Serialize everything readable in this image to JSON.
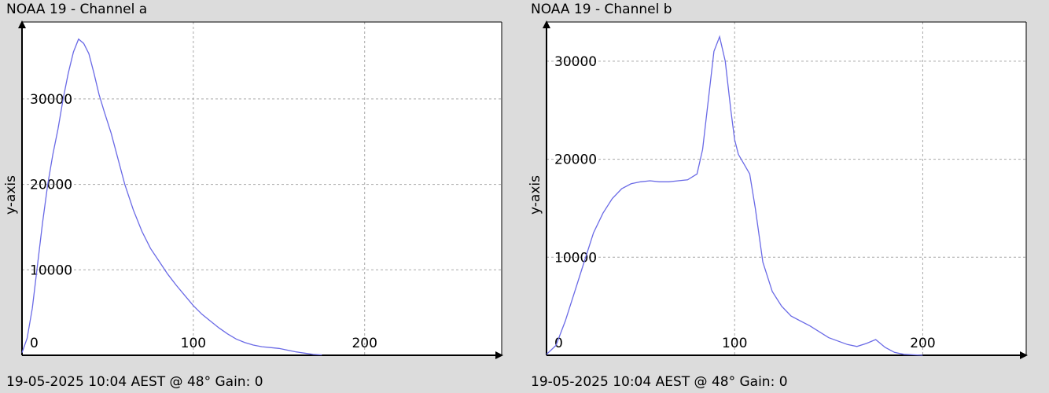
{
  "chart_data": [
    {
      "type": "line",
      "title": "NOAA 19 - Channel a",
      "footer": "19-05-2025 10:04 AEST @ 48° Gain: 0",
      "xlabel": "",
      "ylabel": "y-axis",
      "xlim": [
        0,
        280
      ],
      "ylim": [
        0,
        39000
      ],
      "x_ticks": [
        0,
        100,
        200
      ],
      "y_ticks": [
        10000,
        20000,
        30000
      ],
      "grid": true,
      "line_color": "#6a6ae6",
      "series": [
        {
          "x": [
            0,
            3,
            6,
            9,
            12,
            15,
            18,
            21,
            24,
            27,
            30,
            33,
            36,
            39,
            42,
            45,
            48,
            52,
            56,
            60,
            65,
            70,
            75,
            80,
            85,
            90,
            95,
            100,
            105,
            110,
            115,
            120,
            125,
            130,
            135,
            140,
            145,
            150,
            155,
            160,
            165,
            170,
            175
          ],
          "y": [
            300,
            2000,
            5500,
            10500,
            15500,
            20000,
            23500,
            26500,
            30000,
            33000,
            35500,
            37000,
            36500,
            35300,
            33000,
            30500,
            28500,
            26000,
            23000,
            20000,
            17000,
            14500,
            12500,
            11000,
            9500,
            8200,
            7000,
            5800,
            4800,
            4000,
            3200,
            2500,
            1900,
            1500,
            1200,
            1000,
            900,
            800,
            600,
            400,
            250,
            100,
            50
          ]
        }
      ]
    },
    {
      "type": "line",
      "title": "NOAA 19 - Channel b",
      "footer": "19-05-2025 10:04 AEST @ 48° Gain: 0",
      "xlabel": "",
      "ylabel": "y-axis",
      "xlim": [
        0,
        255
      ],
      "ylim": [
        0,
        34000
      ],
      "x_ticks": [
        0,
        100,
        200
      ],
      "y_ticks": [
        10000,
        20000,
        30000
      ],
      "grid": true,
      "line_color": "#6a6ae6",
      "series": [
        {
          "x": [
            0,
            5,
            10,
            15,
            20,
            25,
            30,
            35,
            40,
            45,
            50,
            55,
            60,
            65,
            70,
            75,
            80,
            83,
            86,
            89,
            92,
            95,
            98,
            100,
            102,
            105,
            108,
            111,
            115,
            120,
            125,
            130,
            140,
            150,
            160,
            165,
            170,
            175,
            180,
            185,
            190,
            195,
            200
          ],
          "y": [
            100,
            1000,
            3500,
            6500,
            9500,
            12500,
            14500,
            16000,
            17000,
            17500,
            17700,
            17800,
            17700,
            17700,
            17800,
            17900,
            18500,
            21000,
            26000,
            31000,
            32500,
            30000,
            25000,
            22000,
            20500,
            19500,
            18500,
            15000,
            9500,
            6500,
            5000,
            4000,
            3000,
            1800,
            1100,
            900,
            1200,
            1600,
            800,
            300,
            100,
            50,
            0
          ]
        }
      ]
    }
  ]
}
